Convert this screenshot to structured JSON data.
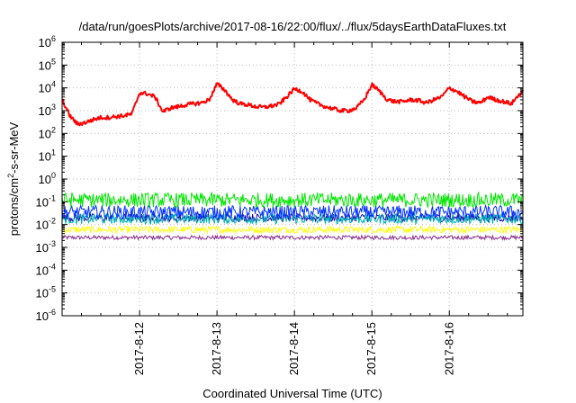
{
  "chart_data": {
    "type": "line",
    "title": "/data/run/goesPlots/archive/2017-08-16/22:00/flux/../flux/5daysEarthDataFluxes.txt",
    "xlabel": "Coordinated Universal Time (UTC)",
    "ylabel": {
      "prefix": "protons/cm",
      "sup": "2",
      "suffix": "-s-sr-MeV"
    },
    "yscale": "log",
    "ylim": [
      1e-06,
      1000000.0
    ],
    "yticks": [
      {
        "exp": -6,
        "label": "10",
        "sup": "-6"
      },
      {
        "exp": -5,
        "label": "10",
        "sup": "-5"
      },
      {
        "exp": -4,
        "label": "10",
        "sup": "-4"
      },
      {
        "exp": -3,
        "label": "10",
        "sup": "-3"
      },
      {
        "exp": -2,
        "label": "10",
        "sup": "-2"
      },
      {
        "exp": -1,
        "label": "10",
        "sup": "-1"
      },
      {
        "exp": 0,
        "label": "10",
        "sup": "0"
      },
      {
        "exp": 1,
        "label": "10",
        "sup": "1"
      },
      {
        "exp": 2,
        "label": "10",
        "sup": "2"
      },
      {
        "exp": 3,
        "label": "10",
        "sup": "3"
      },
      {
        "exp": 4,
        "label": "10",
        "sup": "4"
      },
      {
        "exp": 5,
        "label": "10",
        "sup": "5"
      },
      {
        "exp": 6,
        "label": "10",
        "sup": "6"
      }
    ],
    "xlim_days": [
      11.0,
      16.95
    ],
    "xticks": [
      {
        "day": 12,
        "label": "2017-8-12"
      },
      {
        "day": 13,
        "label": "2017-8-13"
      },
      {
        "day": 14,
        "label": "2017-8-14"
      },
      {
        "day": 15,
        "label": "2017-8-15"
      },
      {
        "day": 16,
        "label": "2017-8-16"
      }
    ],
    "grid": true,
    "series": [
      {
        "color": "#ff0000",
        "width": 2,
        "x": [
          11.0,
          11.1,
          11.2,
          11.3,
          11.4,
          11.5,
          11.6,
          11.7,
          11.8,
          11.9,
          12.0,
          12.1,
          12.2,
          12.3,
          12.4,
          12.5,
          12.6,
          12.7,
          12.8,
          12.9,
          13.0,
          13.1,
          13.2,
          13.3,
          13.4,
          13.5,
          13.6,
          13.7,
          13.8,
          13.9,
          14.0,
          14.1,
          14.2,
          14.3,
          14.4,
          14.5,
          14.6,
          14.7,
          14.8,
          14.9,
          15.0,
          15.1,
          15.2,
          15.3,
          15.4,
          15.5,
          15.6,
          15.7,
          15.8,
          15.9,
          16.0,
          16.1,
          16.2,
          16.3,
          16.4,
          16.5,
          16.6,
          16.7,
          16.8,
          16.9,
          16.95
        ],
        "y": [
          3000,
          600,
          250,
          300,
          400,
          500,
          500,
          550,
          600,
          700,
          6000,
          5500,
          4000,
          900,
          1300,
          1500,
          1800,
          2000,
          2200,
          3000,
          15000,
          8000,
          3000,
          2000,
          1800,
          1500,
          1400,
          1600,
          1900,
          4000,
          9000,
          7000,
          3000,
          2000,
          1500,
          1200,
          1000,
          1000,
          1300,
          3000,
          14000,
          7000,
          3000,
          2500,
          2500,
          3000,
          2800,
          2200,
          3000,
          4000,
          10000,
          7000,
          4000,
          2500,
          2200,
          4000,
          3000,
          2500,
          2000,
          5000,
          7000
        ]
      },
      {
        "color": "#00e600",
        "width": 1,
        "center": 0.12,
        "spread": 0.65
      },
      {
        "color": "#0033ff",
        "width": 1,
        "center": 0.035,
        "spread": 0.6
      },
      {
        "color": "#00b3b3",
        "width": 1,
        "center": 0.018,
        "spread": 0.45
      },
      {
        "color": "#1a00b3",
        "width": 1,
        "center": 0.02,
        "spread": 0.35
      },
      {
        "color": "#ffff00",
        "width": 1,
        "center": 0.006,
        "spread": 0.3
      },
      {
        "color": "#8b2f8b",
        "width": 1,
        "center": 0.0027,
        "spread": 0.18
      }
    ]
  }
}
